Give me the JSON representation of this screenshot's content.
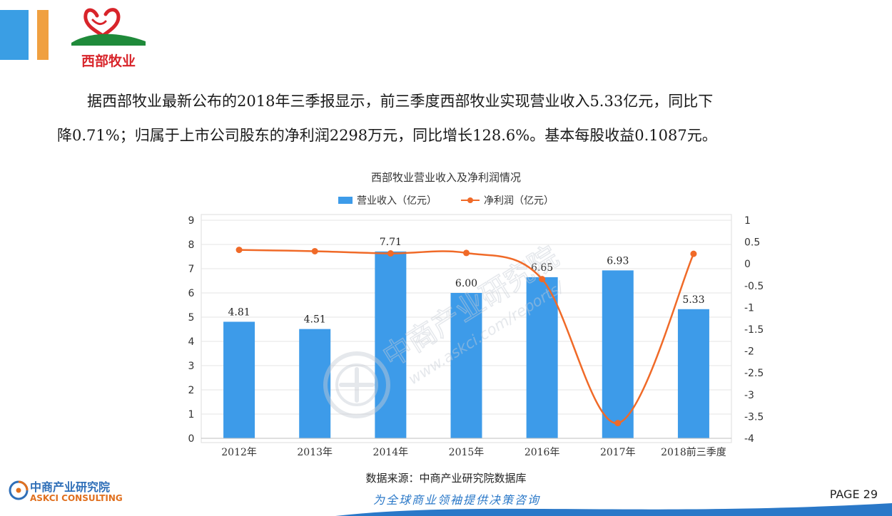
{
  "logo": {
    "text": "西部牧业"
  },
  "paragraph": {
    "line1": "据西部牧业最新公布的2018年三季报显示，前三季度西部牧业实现营业收入5.33亿元，同比下",
    "line2": "降0.71%；归属于上市公司股东的净利润2298万元，同比增长128.6%。基本每股收益0.1087元。"
  },
  "watermark": {
    "cn": "中商产业研究院",
    "url": "www.askci.com/reports/"
  },
  "chart_data": {
    "type": "bar",
    "title": "西部牧业营业收入及净利润情况",
    "categories": [
      "2012年",
      "2013年",
      "2014年",
      "2015年",
      "2016年",
      "2017年",
      "2018前三季度"
    ],
    "series": [
      {
        "name": "营业收入（亿元）",
        "type": "bar",
        "axis": "left",
        "color": "#3d9be9",
        "values": [
          4.81,
          4.51,
          7.71,
          6.0,
          6.65,
          6.93,
          5.33
        ],
        "labels": [
          "4.81",
          "4.51",
          "7.71",
          "6.00",
          "6.65",
          "6.93",
          "5.33"
        ]
      },
      {
        "name": "净利润（亿元）",
        "type": "line",
        "axis": "right",
        "color": "#f06a28",
        "values": [
          0.32,
          0.29,
          0.24,
          0.25,
          -0.35,
          -3.65,
          0.23
        ]
      }
    ],
    "y_left": {
      "min": 0,
      "max": 9,
      "ticks": [
        "0",
        "1",
        "2",
        "3",
        "4",
        "5",
        "6",
        "7",
        "8",
        "9"
      ]
    },
    "y_right": {
      "min": -4,
      "max": 1,
      "ticks": [
        "-4",
        "-3.5",
        "-3",
        "-2.5",
        "-2",
        "-1.5",
        "-1",
        "-0.5",
        "0",
        "0.5",
        "1"
      ]
    },
    "grid": true,
    "legend": "top-center"
  },
  "source": "数据来源：中商产业研究院数据库",
  "slogan": "为全球商业领袖提供决策咨询",
  "footer": {
    "company_cn": "中商产业研究院",
    "company_en": "ASKCI CONSULTING"
  },
  "page": "PAGE 29",
  "colors": {
    "accent_blue": "#3a9ee4",
    "accent_orange": "#f0a040",
    "bar": "#3d9be9",
    "line": "#f06a28"
  }
}
